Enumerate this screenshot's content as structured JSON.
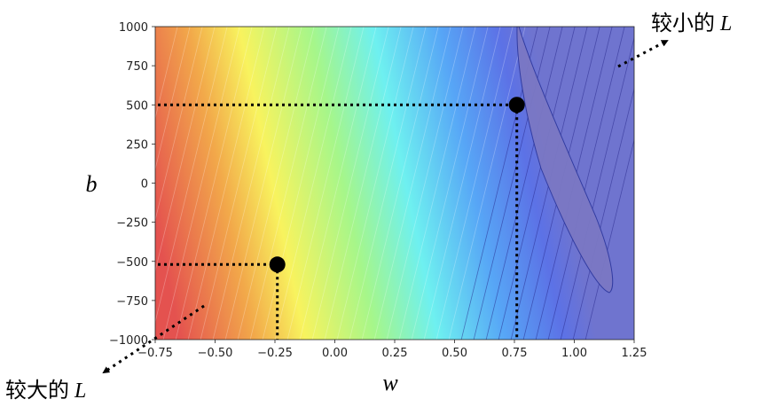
{
  "chart_data": {
    "type": "contour",
    "title": "",
    "xlabel": "w",
    "ylabel": "b",
    "xlim": [
      -0.75,
      1.25
    ],
    "ylim": [
      -1000,
      1000
    ],
    "x_ticks": [
      "−0.75",
      "−0.50",
      "−0.25",
      "0.00",
      "0.25",
      "0.50",
      "0.75",
      "1.00",
      "1.25"
    ],
    "x_tick_values": [
      -0.75,
      -0.5,
      -0.25,
      0.0,
      0.25,
      0.5,
      0.75,
      1.0,
      1.25
    ],
    "y_ticks": [
      "1000",
      "750",
      "500",
      "250",
      "0",
      "−250",
      "−500",
      "−750",
      "−1000"
    ],
    "y_tick_values": [
      1000,
      750,
      500,
      250,
      0,
      -250,
      -500,
      -750,
      -1000
    ],
    "colormap": "jet",
    "minimum_region": {
      "w": [
        0.77,
        1.15
      ],
      "b": [
        -700,
        1000
      ]
    },
    "points": [
      {
        "w": 0.76,
        "b": 500
      },
      {
        "w": -0.24,
        "b": -520
      }
    ],
    "annotations": [
      {
        "text": "较小的 ",
        "var": "L",
        "arrow_target": "low-loss-region"
      },
      {
        "text": "较大的 ",
        "var": "L",
        "arrow_target": "high-loss-region"
      }
    ]
  }
}
